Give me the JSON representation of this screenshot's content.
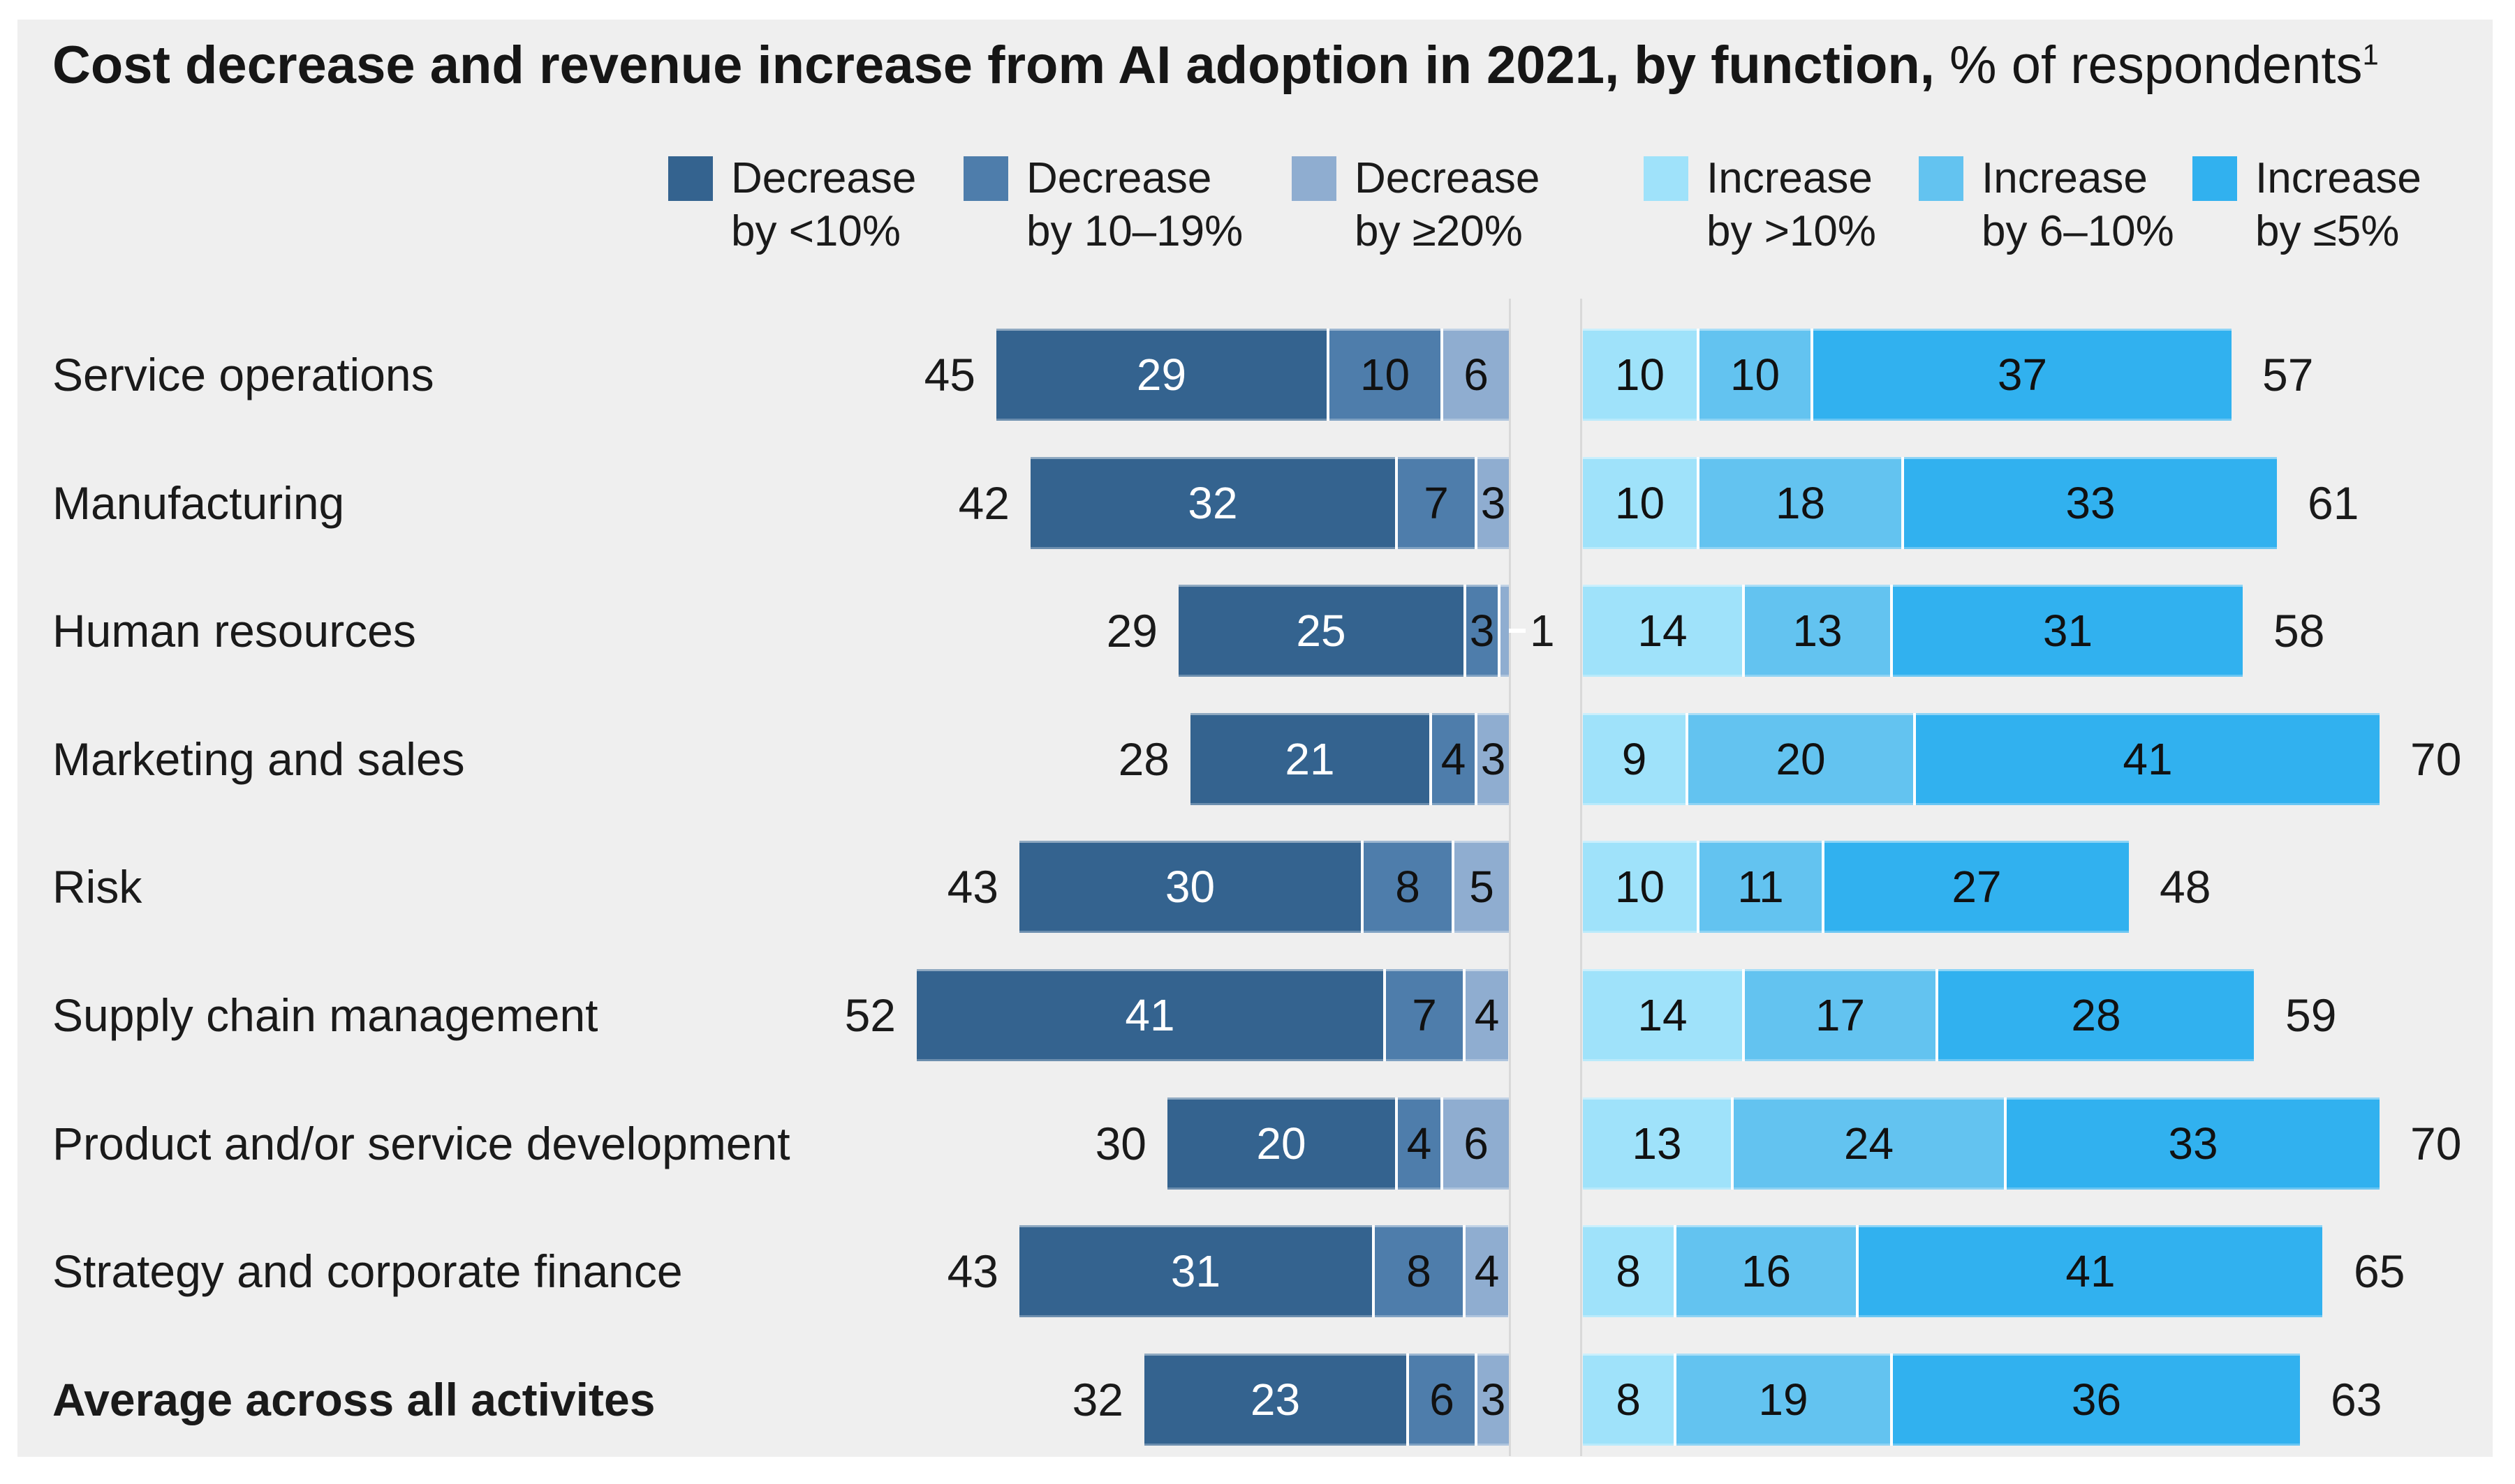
{
  "strings": {
    "title_bold": "Cost decrease and revenue increase from AI adoption in 2021, by function,",
    "title_suffix": " % of respondents",
    "footnote_marker": "1"
  },
  "legend": [
    {
      "label_line1": "Decrease",
      "label_line2": "by <10%",
      "color": "#34638f"
    },
    {
      "label_line1": "Decrease",
      "label_line2": "by 10–19%",
      "color": "#4e7dab"
    },
    {
      "label_line1": "Decrease",
      "label_line2": "by ≥20%",
      "color": "#8fadd0"
    },
    {
      "label_line1": "Increase",
      "label_line2": "by >10%",
      "color": "#9fe2fa"
    },
    {
      "label_line1": "Increase",
      "label_line2": "by 6–10%",
      "color": "#63c3f0"
    },
    {
      "label_line1": "Increase",
      "label_line2": "by ≤5%",
      "color": "#31b1ef"
    }
  ],
  "chart_data": {
    "type": "bar",
    "variant": "diverging_stacked_horizontal",
    "title": "Cost decrease and revenue increase from AI adoption in 2021, by function, % of respondents¹",
    "legend_position": "top",
    "grid": false,
    "categories": [
      "Service operations",
      "Manufacturing",
      "Human resources",
      "Marketing and sales",
      "Risk",
      "Supply chain management",
      "Product and/or service development",
      "Strategy and corporate finance",
      "Average across all activites"
    ],
    "emphasized_category_index": 8,
    "series": [
      {
        "name": "Decrease by <10%",
        "side": "decrease",
        "values": [
          29,
          32,
          25,
          21,
          30,
          41,
          20,
          31,
          23
        ],
        "color": "#34638f",
        "value_text_color": "#ffffff"
      },
      {
        "name": "Decrease by 10–19%",
        "side": "decrease",
        "values": [
          10,
          7,
          3,
          4,
          8,
          7,
          4,
          8,
          6
        ],
        "color": "#4e7dab",
        "value_text_color": "#111111"
      },
      {
        "name": "Decrease by ≥20%",
        "side": "decrease",
        "values": [
          6,
          3,
          1,
          3,
          5,
          4,
          6,
          4,
          3
        ],
        "color": "#8fadd0",
        "value_text_color": "#111111"
      },
      {
        "name": "Increase by >10%",
        "side": "increase",
        "values": [
          10,
          10,
          14,
          9,
          10,
          14,
          13,
          8,
          8
        ],
        "color": "#9fe2fa",
        "value_text_color": "#111111"
      },
      {
        "name": "Increase by 6–10%",
        "side": "increase",
        "values": [
          10,
          18,
          13,
          20,
          11,
          17,
          24,
          16,
          19
        ],
        "color": "#63c3f0",
        "value_text_color": "#111111"
      },
      {
        "name": "Increase by ≤5%",
        "side": "increase",
        "values": [
          37,
          33,
          31,
          41,
          27,
          28,
          33,
          41,
          36
        ],
        "color": "#31b1ef",
        "value_text_color": "#111111"
      }
    ],
    "decrease_totals": [
      45,
      42,
      29,
      28,
      43,
      52,
      30,
      43,
      32
    ],
    "increase_totals": [
      57,
      61,
      58,
      70,
      48,
      59,
      70,
      65,
      63
    ]
  },
  "colors": {
    "page_background": "#ffffff",
    "panel_background": "#efefef",
    "axis_line": "#d9d9d9",
    "text": "#1a1a1a",
    "segment_separator": "#ffffff"
  }
}
